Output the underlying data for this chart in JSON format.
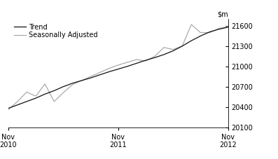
{
  "ylim": [
    20100,
    21700
  ],
  "yticks": [
    20100,
    20400,
    20700,
    21000,
    21300,
    21600
  ],
  "xtick_labels": [
    "Nov\n2010",
    "Nov\n2011",
    "Nov\n2012"
  ],
  "xtick_positions": [
    0,
    12,
    24
  ],
  "trend_color": "#111111",
  "seas_adj_color": "#aaaaaa",
  "trend_linewidth": 0.9,
  "seas_adj_linewidth": 0.9,
  "legend_labels": [
    "Trend",
    "Seasonally Adjusted"
  ],
  "background_color": "#ffffff",
  "trend": [
    20380,
    20430,
    20480,
    20530,
    20590,
    20640,
    20700,
    20750,
    20790,
    20830,
    20875,
    20920,
    20960,
    21000,
    21045,
    21090,
    21130,
    21175,
    21230,
    21300,
    21380,
    21450,
    21510,
    21550,
    21580
  ],
  "seas_adj": [
    20360,
    20480,
    20620,
    20560,
    20740,
    20480,
    20610,
    20730,
    20790,
    20850,
    20910,
    20970,
    21020,
    21060,
    21100,
    21080,
    21150,
    21280,
    21250,
    21300,
    21620,
    21500,
    21500,
    21560,
    21590
  ]
}
